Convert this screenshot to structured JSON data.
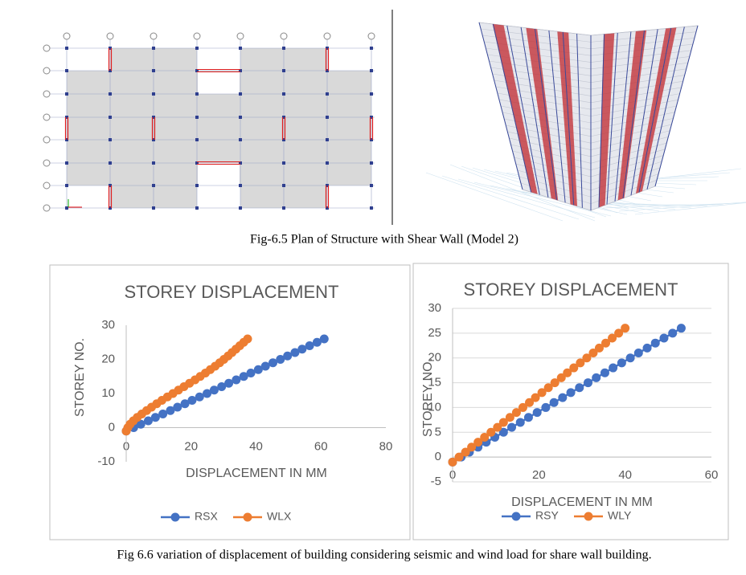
{
  "figure_top": {
    "caption": "Fig-6.5 Plan of Structure with Shear Wall (Model 2)"
  },
  "chart_data": [
    {
      "type": "line",
      "title": "STOREY DISPLACEMENT",
      "x_label": "DISPLACEMENT IN MM",
      "y_label": "STOREY NO.",
      "xlim": [
        0,
        80
      ],
      "xticks": [
        0,
        20,
        40,
        60,
        80
      ],
      "ylim": [
        -10,
        30
      ],
      "yticks": [
        -10,
        0,
        10,
        20,
        30
      ],
      "grid": false,
      "legend": "bottom",
      "series": [
        {
          "name": "RSX",
          "color": "#4472c4",
          "x": [
            0,
            2.3,
            4.5,
            6.8,
            9.0,
            11.3,
            13.6,
            15.8,
            18.1,
            20.3,
            22.6,
            24.9,
            27.1,
            29.4,
            31.6,
            33.9,
            36.2,
            38.4,
            40.7,
            42.9,
            45.2,
            47.5,
            49.7,
            52.0,
            54.2,
            56.5,
            58.8,
            61.0
          ],
          "values": [
            -1,
            0,
            1,
            2,
            3,
            4,
            5,
            6,
            7,
            8,
            9,
            10,
            11,
            12,
            13,
            14,
            15,
            16,
            17,
            18,
            19,
            20,
            21,
            22,
            23,
            24,
            25,
            26
          ]
        },
        {
          "name": "WLX",
          "color": "#ed7d31",
          "x": [
            0,
            0.5,
            1.2,
            2.2,
            3.4,
            4.8,
            6.3,
            7.8,
            9.4,
            11,
            12.7,
            14.4,
            16.1,
            17.8,
            19.5,
            21.2,
            22.8,
            24.4,
            25.9,
            27.4,
            28.8,
            30.1,
            31.4,
            32.6,
            33.8,
            35,
            36.2,
            37.4
          ],
          "values": [
            -1,
            0,
            1,
            2,
            3,
            4,
            5,
            6,
            7,
            8,
            9,
            10,
            11,
            12,
            13,
            14,
            15,
            16,
            17,
            18,
            19,
            20,
            21,
            22,
            23,
            24,
            25,
            26
          ]
        }
      ]
    },
    {
      "type": "line",
      "title": "STOREY DISPLACEMENT",
      "x_label": "DISPLACEMENT IN MM",
      "y_label": "STOREY NO.",
      "xlim": [
        0,
        60
      ],
      "xticks": [
        0,
        20,
        40,
        60
      ],
      "ylim": [
        -5,
        30
      ],
      "yticks": [
        -5,
        0,
        5,
        10,
        15,
        20,
        25,
        30
      ],
      "grid": true,
      "legend": "bottom",
      "series": [
        {
          "name": "RSY",
          "color": "#4472c4",
          "x": [
            0,
            2.0,
            3.9,
            5.9,
            7.8,
            9.8,
            11.8,
            13.7,
            15.7,
            17.6,
            19.6,
            21.6,
            23.5,
            25.5,
            27.4,
            29.4,
            31.4,
            33.3,
            35.3,
            37.2,
            39.2,
            41.2,
            43.1,
            45.1,
            47.0,
            49.0,
            51.0,
            53.0
          ],
          "values": [
            -1,
            0,
            1,
            2,
            3,
            4,
            5,
            6,
            7,
            8,
            9,
            10,
            11,
            12,
            13,
            14,
            15,
            16,
            17,
            18,
            19,
            20,
            21,
            22,
            23,
            24,
            25,
            26
          ]
        },
        {
          "name": "WLY",
          "color": "#ed7d31",
          "x": [
            0,
            1.5,
            3.0,
            4.4,
            5.9,
            7.4,
            8.9,
            10.4,
            11.8,
            13.3,
            14.8,
            16.3,
            17.8,
            19.2,
            20.7,
            22.2,
            23.7,
            25.2,
            26.6,
            28.1,
            29.6,
            31.1,
            32.6,
            34.0,
            35.5,
            37.0,
            38.5,
            40.0
          ],
          "values": [
            -1,
            0,
            1,
            2,
            3,
            4,
            5,
            6,
            7,
            8,
            9,
            10,
            11,
            12,
            13,
            14,
            15,
            16,
            17,
            18,
            19,
            20,
            21,
            22,
            23,
            24,
            25,
            26
          ]
        }
      ]
    }
  ],
  "figure_bottom": {
    "caption": "Fig 6.6 variation of displacement of building considering seismic and wind load for share wall building."
  }
}
